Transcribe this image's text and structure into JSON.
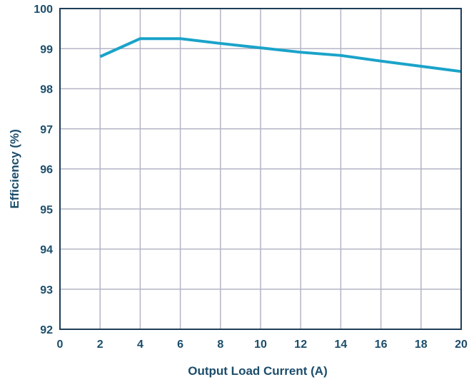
{
  "chart_data": {
    "type": "line",
    "xlabel": "Output Load Current (A)",
    "ylabel": "Efficiency (%)",
    "xlim": [
      0,
      20
    ],
    "ylim": [
      92,
      100
    ],
    "x_ticks": [
      0,
      2,
      4,
      6,
      8,
      10,
      12,
      14,
      16,
      18,
      20
    ],
    "y_ticks": [
      92,
      93,
      94,
      95,
      96,
      97,
      98,
      99,
      100
    ],
    "grid": true,
    "series": [
      {
        "x": [
          2,
          4,
          6,
          8,
          10,
          12,
          14,
          16,
          18,
          20
        ],
        "values": [
          98.8,
          99.25,
          99.25,
          99.13,
          99.02,
          98.91,
          98.83,
          98.69,
          98.56,
          98.43
        ]
      }
    ]
  },
  "colors": {
    "axis_text": "#1b4d6b",
    "grid": "#b4b4c6",
    "frame": "#1f3e57",
    "line": "#1aa3c9"
  }
}
